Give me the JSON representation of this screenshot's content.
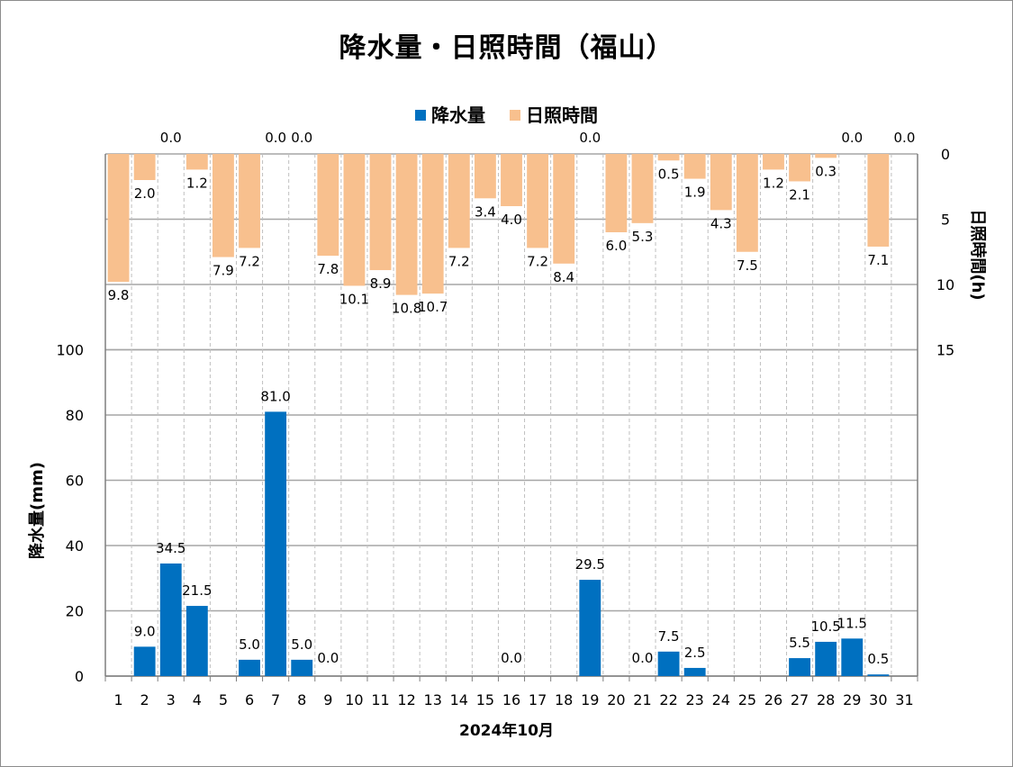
{
  "chart_data": {
    "type": "bar",
    "title": "降水量・日照時間（福山）",
    "xlabel": "2024年10月",
    "categories": [
      "1",
      "2",
      "3",
      "4",
      "5",
      "6",
      "7",
      "8",
      "9",
      "10",
      "11",
      "12",
      "13",
      "14",
      "15",
      "16",
      "17",
      "18",
      "19",
      "20",
      "21",
      "22",
      "23",
      "24",
      "25",
      "26",
      "27",
      "28",
      "29",
      "30",
      "31"
    ],
    "series": [
      {
        "name": "降水量",
        "color": "#0070c0",
        "axis": "left",
        "values": [
          null,
          9.0,
          34.5,
          21.5,
          null,
          5.0,
          81.0,
          5.0,
          0.0,
          null,
          null,
          null,
          null,
          null,
          null,
          0.0,
          null,
          null,
          29.5,
          null,
          0.0,
          7.5,
          2.5,
          null,
          null,
          null,
          5.5,
          10.5,
          11.5,
          0.5,
          null
        ]
      },
      {
        "name": "日照時間",
        "color": "#f8c08e",
        "axis": "right-inverted",
        "values": [
          9.8,
          2.0,
          0.0,
          1.2,
          7.9,
          7.2,
          0.0,
          0.0,
          7.8,
          10.1,
          8.9,
          10.8,
          10.7,
          7.2,
          3.4,
          4.0,
          7.2,
          8.4,
          0.0,
          6.0,
          5.3,
          0.5,
          1.9,
          4.3,
          7.5,
          1.2,
          2.1,
          0.3,
          0.0,
          7.1,
          0.0
        ]
      }
    ],
    "y_left": {
      "label": "降水量(mm)",
      "ticks": [
        "0",
        "20",
        "40",
        "60",
        "80",
        "100"
      ],
      "ylim": [
        0,
        160
      ]
    },
    "y_right": {
      "label": "日照時間(h)",
      "ticks": [
        "0",
        "5",
        "10",
        "15"
      ],
      "ylim": [
        0,
        40
      ],
      "inverted": true
    },
    "legend": "top-center",
    "grid": true
  }
}
